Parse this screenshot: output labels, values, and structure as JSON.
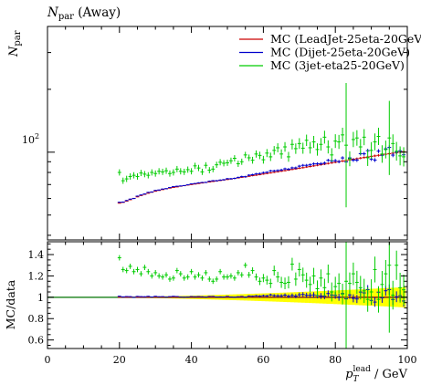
{
  "chart_data": [
    {
      "type": "scatter",
      "title": "N_par (Away)",
      "title_main": "N",
      "title_sub": "par",
      "title_suffix": " (Away)",
      "ylabel_main": "N",
      "ylabel_sub": "par",
      "yscale": "log",
      "ylim": [
        38,
        400
      ],
      "xlim": [
        0,
        100
      ],
      "ytick_label": "10",
      "ytick_exp": "2",
      "ytick_value": 100,
      "legend_position": "top-right",
      "legend": [
        "MC (LeadJet-25eta-20GeV)",
        "MC (Dijet-25eta-20GeV)",
        "MC (3jet-eta25-20GeV)"
      ],
      "colors": [
        "#cc0000",
        "#0000cc",
        "#00cc00"
      ],
      "x": [
        20,
        21,
        22,
        23,
        24,
        25,
        26,
        27,
        28,
        29,
        30,
        31,
        32,
        33,
        34,
        35,
        36,
        37,
        38,
        39,
        40,
        41,
        42,
        43,
        44,
        45,
        46,
        47,
        48,
        49,
        50,
        51,
        52,
        53,
        54,
        55,
        56,
        57,
        58,
        59,
        60,
        61,
        62,
        63,
        64,
        65,
        66,
        67,
        68,
        69,
        70,
        71,
        72,
        73,
        74,
        75,
        76,
        77,
        78,
        79,
        80,
        81,
        82,
        83,
        84,
        85,
        86,
        87,
        88,
        89,
        90,
        91,
        92,
        93,
        94,
        95,
        96,
        97,
        98,
        99
      ],
      "series": [
        {
          "name": "MC (LeadJet-25eta-20GeV)",
          "values": [
            57.0,
            57.5,
            58.3,
            59.2,
            60.1,
            61.1,
            62.0,
            62.8,
            63.6,
            64.3,
            65.0,
            65.6,
            66.2,
            66.8,
            67.3,
            67.8,
            68.2,
            68.7,
            69.1,
            69.6,
            70.0,
            70.4,
            70.8,
            71.2,
            71.6,
            72.0,
            72.4,
            72.8,
            73.2,
            73.6,
            74.0,
            74.4,
            74.9,
            75.3,
            75.8,
            76.2,
            76.7,
            77.2,
            77.6,
            78.1,
            78.6,
            79.1,
            79.6,
            80.1,
            80.6,
            81.1,
            81.6,
            82.1,
            82.7,
            83.2,
            83.8,
            84.3,
            84.9,
            85.4,
            86.0,
            86.6,
            87.1,
            87.7,
            88.3,
            88.9,
            89.5,
            90.1,
            90.7,
            91.3,
            91.9,
            92.5,
            93.1,
            93.7,
            94.3,
            94.9,
            95.5,
            96.0,
            96.6,
            97.2,
            97.8,
            98.3,
            98.9,
            99.5,
            100.0,
            100.6
          ]
        },
        {
          "name": "MC (Dijet-25eta-20GeV)",
          "values": [
            57.6,
            57.7,
            58.7,
            59.6,
            60.0,
            61.6,
            62.4,
            63.1,
            64.2,
            64.5,
            65.6,
            65.9,
            66.6,
            66.9,
            67.7,
            68.4,
            68.7,
            68.9,
            69.2,
            69.8,
            70.5,
            70.8,
            71.3,
            71.6,
            71.7,
            72.6,
            73.0,
            73.0,
            73.5,
            73.8,
            74.6,
            74.6,
            74.9,
            75.7,
            76.4,
            76.3,
            77.6,
            78.0,
            78.7,
            79.0,
            79.8,
            80.1,
            81.4,
            81.4,
            81.7,
            82.2,
            83.2,
            82.9,
            84.1,
            84.1,
            85.7,
            86.5,
            86.5,
            87.0,
            87.9,
            88.0,
            88.1,
            88.7,
            91.4,
            90.8,
            91.1,
            90.1,
            93.9,
            89.9,
            93.9,
            91.6,
            91.6,
            98.3,
            98.2,
            101.7,
            92.7,
            91.7,
            101.2,
            96.6,
            103.8,
            105.4,
            96.8,
            100.0,
            101.5,
            97.1
          ]
        },
        {
          "name": "MC (3jet-eta25-20GeV)",
          "values": [
            80.0,
            73.0,
            74.5,
            76.5,
            77.5,
            76.5,
            79.5,
            78.5,
            77.5,
            80.0,
            79.0,
            81.0,
            80.5,
            81.5,
            79.0,
            80.0,
            83.0,
            81.0,
            80.5,
            82.5,
            81.0,
            86.0,
            84.0,
            80.5,
            86.5,
            82.0,
            83.0,
            87.0,
            89.5,
            88.5,
            89.0,
            91.0,
            93.5,
            88.0,
            90.0,
            97.0,
            94.0,
            91.5,
            98.0,
            96.5,
            92.0,
            99.0,
            95.0,
            102.0,
            105.0,
            98.0,
            106.0,
            95.0,
            109.0,
            104.0,
            110.0,
            104.5,
            114.0,
            105.0,
            112.0,
            103.0,
            109.0,
            118.0,
            106.0,
            97.0,
            113.0,
            112.0,
            121.0,
            108.0,
            93.0,
            115.0,
            117.0,
            106.0,
            118.0,
            94.0,
            102.0,
            112.0,
            119.0,
            98.0,
            103.0,
            117.0,
            110.0,
            101.0,
            96.0,
            95.0
          ]
        }
      ]
    },
    {
      "type": "scatter",
      "ylabel": "MC/data",
      "xlabel_main": "p",
      "xlabel_sub": "T",
      "xlabel_sup": "lead",
      "xlabel_unit": " / GeV",
      "xlim": [
        0,
        100
      ],
      "ylim": [
        0.52,
        1.52
      ],
      "xticks": [
        0,
        20,
        40,
        60,
        80,
        100
      ],
      "yticks": [
        0.6,
        0.8,
        1,
        1.2,
        1.4
      ],
      "band_color": "#ffff00",
      "colors": [
        "#cc0000",
        "#0000cc",
        "#00cc00"
      ],
      "x": [
        20,
        21,
        22,
        23,
        24,
        25,
        26,
        27,
        28,
        29,
        30,
        31,
        32,
        33,
        34,
        35,
        36,
        37,
        38,
        39,
        40,
        41,
        42,
        43,
        44,
        45,
        46,
        47,
        48,
        49,
        50,
        51,
        52,
        53,
        54,
        55,
        56,
        57,
        58,
        59,
        60,
        61,
        62,
        63,
        64,
        65,
        66,
        67,
        68,
        69,
        70,
        71,
        72,
        73,
        74,
        75,
        76,
        77,
        78,
        79,
        80,
        81,
        82,
        83,
        84,
        85,
        86,
        87,
        88,
        89,
        90,
        91,
        92,
        93,
        94,
        95,
        96,
        97,
        98,
        99
      ],
      "series": [
        {
          "name": "MC (LeadJet-25eta-20GeV)",
          "values": [
            1.0,
            1.0,
            1.0,
            1.0,
            1.0,
            1.0,
            1.0,
            1.0,
            1.0,
            1.0,
            1.0,
            1.0,
            1.0,
            1.0,
            1.0,
            1.0,
            1.0,
            1.0,
            1.0,
            1.0,
            1.0,
            1.0,
            1.0,
            1.0,
            1.0,
            1.0,
            1.0,
            1.0,
            1.0,
            1.0,
            1.0,
            1.0,
            1.0,
            1.0,
            1.0,
            1.0,
            1.0,
            1.0,
            1.0,
            1.0,
            1.0,
            1.0,
            1.0,
            1.0,
            1.0,
            1.0,
            1.0,
            1.0,
            1.0,
            1.0,
            1.0,
            1.0,
            1.0,
            1.0,
            1.0,
            1.0,
            1.0,
            1.0,
            1.0,
            1.0,
            1.0,
            1.0,
            1.0,
            1.0,
            1.0,
            1.0,
            1.0,
            1.0,
            1.0,
            1.0,
            1.0,
            1.0,
            1.0,
            1.0,
            1.0,
            1.0,
            1.0,
            1.0,
            1.0,
            1.0
          ]
        },
        {
          "name": "MC (Dijet-25eta-20GeV)",
          "values": [
            1.01,
            1.004,
            1.007,
            1.006,
            0.999,
            1.008,
            1.006,
            1.005,
            1.009,
            1.003,
            1.009,
            1.005,
            1.006,
            1.002,
            1.006,
            1.009,
            1.007,
            1.003,
            1.001,
            1.003,
            1.007,
            1.005,
            1.007,
            1.005,
            1.002,
            1.008,
            1.008,
            1.003,
            1.004,
            1.003,
            1.008,
            1.003,
            1.0,
            1.005,
            1.008,
            1.001,
            1.012,
            1.01,
            1.014,
            1.011,
            1.015,
            1.013,
            1.022,
            1.016,
            1.014,
            1.014,
            1.02,
            1.01,
            1.017,
            1.011,
            1.023,
            1.026,
            1.019,
            1.019,
            1.022,
            1.016,
            1.012,
            1.011,
            1.035,
            1.021,
            1.018,
            1.0,
            1.035,
            0.985,
            1.022,
            0.99,
            0.984,
            1.049,
            1.041,
            1.072,
            0.971,
            0.955,
            1.048,
            0.994,
            1.061,
            1.072,
            0.979,
            1.005,
            1.015,
            0.965
          ]
        },
        {
          "name": "MC (3jet-eta25-20GeV)",
          "values": [
            1.37,
            1.26,
            1.25,
            1.29,
            1.24,
            1.26,
            1.22,
            1.28,
            1.24,
            1.2,
            1.23,
            1.2,
            1.19,
            1.21,
            1.17,
            1.18,
            1.25,
            1.22,
            1.18,
            1.19,
            1.24,
            1.19,
            1.21,
            1.18,
            1.23,
            1.17,
            1.15,
            1.17,
            1.24,
            1.19,
            1.19,
            1.2,
            1.18,
            1.23,
            1.21,
            1.3,
            1.21,
            1.25,
            1.19,
            1.15,
            1.18,
            1.16,
            1.13,
            1.25,
            1.19,
            1.14,
            1.13,
            1.14,
            1.31,
            1.17,
            1.26,
            1.21,
            1.16,
            1.12,
            1.2,
            1.08,
            1.18,
            1.09,
            1.22,
            1.05,
            1.1,
            1.13,
            1.03,
            1.15,
            1.13,
            1.22,
            1.14,
            1.09,
            1.06,
            0.98,
            1.05,
            1.26,
            0.98,
            1.12,
            1.22,
            1.3,
            1.02,
            1.3,
            1.09,
            1.07
          ]
        }
      ]
    }
  ]
}
